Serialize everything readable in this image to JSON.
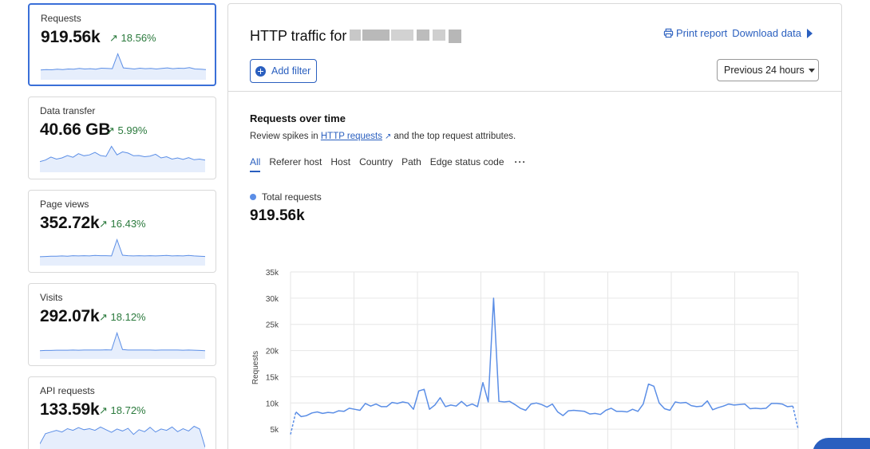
{
  "sidebar": {
    "cards": [
      {
        "title": "Requests",
        "value": "919.56k",
        "change": "18.56%",
        "selected": true,
        "spark": [
          3,
          3.2,
          3.1,
          3.3,
          3.2,
          3.4,
          3.3,
          3.6,
          3.4,
          3.5,
          3.3,
          3.7,
          3.6,
          3.5,
          9,
          3.8,
          3.6,
          3.4,
          3.7,
          3.5,
          3.6,
          3.4,
          3.6,
          3.8,
          3.5,
          3.7,
          3.6,
          3.9,
          3.4,
          3.3,
          3.2
        ]
      },
      {
        "title": "Data transfer",
        "value": "40.66 GB",
        "change": "5.99%",
        "selected": false,
        "spark": [
          3,
          3.5,
          4.5,
          3.8,
          4.2,
          5,
          4.4,
          5.6,
          4.9,
          5.2,
          6,
          5,
          4.7,
          8,
          5.2,
          6.2,
          5.8,
          4.9,
          5,
          4.6,
          4.8,
          5.4,
          4.2,
          4.6,
          3.8,
          4.2,
          3.7,
          4.3,
          3.6,
          3.8,
          3.5
        ]
      },
      {
        "title": "Page views",
        "value": "352.72k",
        "change": "16.43%",
        "selected": false,
        "spark": [
          3,
          3.1,
          3.2,
          3.2,
          3.3,
          3.2,
          3.4,
          3.3,
          3.4,
          3.3,
          3.5,
          3.4,
          3.4,
          3.3,
          10,
          3.6,
          3.4,
          3.3,
          3.4,
          3.3,
          3.4,
          3.3,
          3.4,
          3.5,
          3.3,
          3.4,
          3.3,
          3.5,
          3.3,
          3.2,
          3.1
        ]
      },
      {
        "title": "Visits",
        "value": "292.07k",
        "change": "18.12%",
        "selected": false,
        "spark": [
          3,
          3.1,
          3.1,
          3.2,
          3.2,
          3.2,
          3.3,
          3.2,
          3.3,
          3.3,
          3.3,
          3.3,
          3.4,
          3.3,
          11,
          3.5,
          3.3,
          3.3,
          3.3,
          3.3,
          3.3,
          3.2,
          3.3,
          3.3,
          3.3,
          3.3,
          3.2,
          3.3,
          3.2,
          3.1,
          3
        ]
      },
      {
        "title": "API requests",
        "value": "133.59k",
        "change": "18.72%",
        "selected": false,
        "spark": [
          2,
          5,
          5.5,
          6,
          5.5,
          6.5,
          6,
          6.8,
          6.2,
          6.5,
          6,
          7,
          6.2,
          5.4,
          6.4,
          5.8,
          6.6,
          4.8,
          6.2,
          5.6,
          6.9,
          5.5,
          6.4,
          6,
          7,
          5.6,
          6.5,
          5.8,
          7.2,
          6.4,
          1
        ]
      }
    ]
  },
  "main": {
    "title_prefix": "HTTP traffic for",
    "print_label": "Print report",
    "download_label": "Download data",
    "add_filter_label": "Add filter",
    "time_range": "Previous 24 hours",
    "section_title": "Requests over time",
    "desc_prefix": "Review spikes in",
    "desc_link": "HTTP requests",
    "desc_suffix": "and the top request attributes.",
    "tabs": [
      "All",
      "Referer host",
      "Host",
      "Country",
      "Path",
      "Edge status code"
    ],
    "more_label": "···",
    "legend_label": "Total requests",
    "total_value": "919.56k"
  },
  "colors": {
    "accent": "#2a5fbf",
    "series": "#5b8ee6",
    "positive": "#2b7a3d"
  },
  "chart_data": {
    "type": "line",
    "ylabel": "Requests",
    "ylim": [
      0,
      35000
    ],
    "yticks": [
      "5k",
      "10k",
      "15k",
      "20k",
      "25k",
      "30k",
      "35k"
    ],
    "grid": true,
    "series": [
      {
        "name": "Total requests",
        "values": [
          4000,
          8300,
          7400,
          7600,
          8100,
          8300,
          8000,
          8200,
          8100,
          8500,
          8400,
          9000,
          8800,
          8600,
          9900,
          9400,
          9800,
          9300,
          9300,
          10100,
          9900,
          10200,
          10000,
          8800,
          12300,
          12600,
          8800,
          9600,
          11000,
          9300,
          9600,
          9400,
          10300,
          9400,
          9800,
          9300,
          13900,
          10200,
          30000,
          10300,
          10200,
          10300,
          9700,
          9000,
          8600,
          9800,
          10000,
          9700,
          9200,
          9800,
          8300,
          7600,
          8500,
          8600,
          8500,
          8400,
          7900,
          8000,
          7800,
          8600,
          9000,
          8400,
          8400,
          8300,
          8800,
          8400,
          9800,
          13600,
          13200,
          10000,
          8900,
          8600,
          10200,
          10000,
          10100,
          9500,
          9300,
          9400,
          10400,
          8700,
          9100,
          9400,
          9800,
          9600,
          9700,
          9800,
          8900,
          9000,
          8900,
          9000,
          9900,
          9900,
          9800,
          9300,
          9400,
          5000
        ]
      }
    ]
  }
}
